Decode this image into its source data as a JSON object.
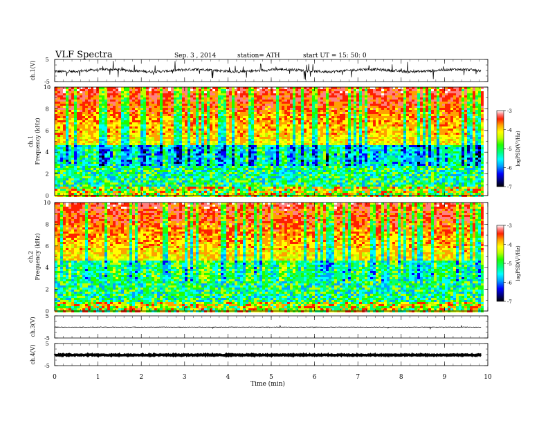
{
  "header": {
    "title": "VLF  Spectra",
    "date": "Sep. 3  , 2014",
    "station": "station= ATH",
    "start": "start  UT  =   15: 50: 0"
  },
  "colors": {
    "colormap": [
      "#000000",
      "#00007a",
      "#0000ff",
      "#00a0ff",
      "#00ffff",
      "#00ff80",
      "#20ff00",
      "#c0ff00",
      "#ffff00",
      "#ffa000",
      "#ff2000",
      "#ff8080",
      "#ffffff"
    ],
    "trace": "#000000"
  },
  "chart_data": [
    {
      "type": "line",
      "name": "ch1-waveform",
      "ylabel": "ch.1(V)",
      "ylim": [
        -5,
        5
      ],
      "yticks": [
        "5",
        "-5"
      ],
      "baseline": 0,
      "noise": "high"
    },
    {
      "type": "heatmap",
      "name": "ch1-spectrogram",
      "ylabel": "ch.1\nFrequency  (kHz)",
      "ylim": [
        0,
        10
      ],
      "yticks": [
        "0",
        "2",
        "4",
        "6",
        "8",
        "10"
      ],
      "colorbar": {
        "label": "logPSD(V²/Hz)",
        "range": [
          -7,
          -3
        ],
        "ticks": [
          "-3",
          "-4",
          "-5",
          "-6",
          "-7"
        ]
      }
    },
    {
      "type": "heatmap",
      "name": "ch2-spectrogram",
      "ylabel": "ch.2\nFrequency  (kHz)",
      "ylim": [
        0,
        10
      ],
      "yticks": [
        "0",
        "2",
        "4",
        "6",
        "8",
        "10"
      ],
      "colorbar": {
        "label": "logPSD(V²/Hz)",
        "range": [
          -7,
          -3
        ],
        "ticks": [
          "-3",
          "-4",
          "-5",
          "-6",
          "-7"
        ]
      }
    },
    {
      "type": "line",
      "name": "ch3-waveform",
      "ylabel": "ch.3(V)",
      "ylim": [
        -5,
        5
      ],
      "yticks": [
        "5",
        "-5"
      ],
      "baseline": 0,
      "noise": "low"
    },
    {
      "type": "line",
      "name": "ch4-waveform",
      "ylabel": "ch.4(V)",
      "ylim": [
        -5,
        5
      ],
      "yticks": [
        "5",
        "-5"
      ],
      "baseline": 0,
      "noise": "thick"
    }
  ],
  "xaxis": {
    "label": "Time  (min)",
    "xlim": [
      0,
      10
    ],
    "data_end": 9.85,
    "ticks": [
      "0",
      "1",
      "2",
      "3",
      "4",
      "5",
      "6",
      "7",
      "8",
      "9",
      "10"
    ]
  }
}
